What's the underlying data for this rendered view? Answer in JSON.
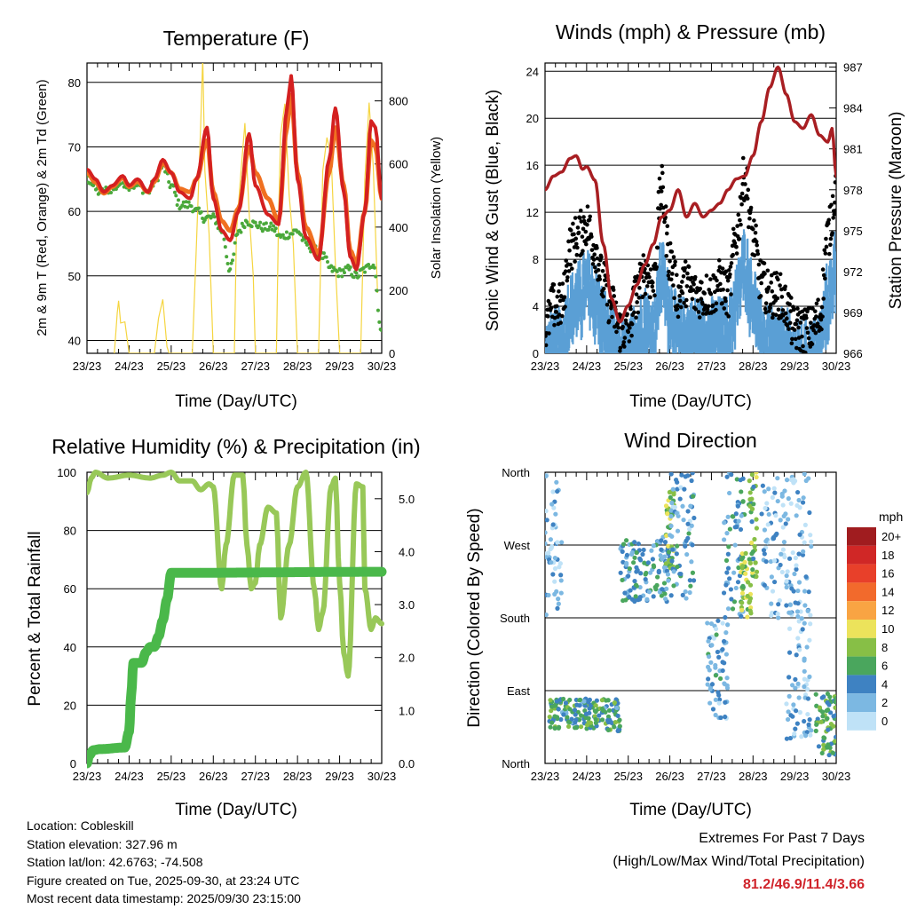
{
  "figure": {
    "location_line": "Location: Cobleskill",
    "elevation_line": "Station elevation: 327.96 m",
    "latlon_line": "Station lat/lon: 42.6763; -74.508",
    "created_line": "Figure created on Tue, 2025-09-30, at 23:24 UTC",
    "recent_line": "Most recent data timestamp: 2025/09/30 23:15:00",
    "extremes_title": "Extremes For Past 7 Days",
    "extremes_sub": "(High/Low/Max Wind/Total Precipitation)",
    "extremes_values": "81.2/46.9/11.4/3.66",
    "extremes_color": "#d0242b"
  },
  "x_tick_labels": [
    "23/23",
    "24/23",
    "25/23",
    "26/23",
    "27/23",
    "28/23",
    "29/23",
    "30/23"
  ],
  "chart_data": [
    {
      "type": "line",
      "title": "Temperature (F)",
      "xlabel": "Time (Day/UTC)",
      "ylabel": "2m & 9m T (Red, Orange) & 2m Td (Green)",
      "y2label": "Solar Insolation (Yellow)",
      "xlim": [
        0,
        7
      ],
      "ylim": [
        38,
        83
      ],
      "y2lim": [
        0,
        920
      ],
      "yticks": [
        40,
        50,
        60,
        70,
        80
      ],
      "y2ticks": [
        0,
        200,
        400,
        600,
        800
      ],
      "series": [
        {
          "name": "2m T",
          "color": "#d42020",
          "axis": "left",
          "x": [
            0,
            0.2,
            0.4,
            0.6,
            0.85,
            1.0,
            1.2,
            1.45,
            1.6,
            1.8,
            2.0,
            2.2,
            2.45,
            2.6,
            2.85,
            3.0,
            3.2,
            3.4,
            3.6,
            3.85,
            4.0,
            4.3,
            4.55,
            4.75,
            4.85,
            5.0,
            5.2,
            5.5,
            5.75,
            5.9,
            6.1,
            6.25,
            6.4,
            6.6,
            6.75,
            6.85,
            7.0
          ],
          "y": [
            66.5,
            65,
            63,
            64,
            65.5,
            64,
            65,
            63,
            65,
            68,
            66,
            63,
            62,
            65,
            73,
            62,
            57,
            55.5,
            60,
            72,
            64,
            59.5,
            58,
            76,
            81,
            65,
            56,
            52.5,
            68,
            76,
            63,
            53,
            51,
            60,
            74,
            73,
            62
          ]
        },
        {
          "name": "9m T",
          "color": "#f07020",
          "axis": "left",
          "x": [
            0,
            0.2,
            0.4,
            0.6,
            0.85,
            1.0,
            1.2,
            1.45,
            1.6,
            1.8,
            2.0,
            2.2,
            2.45,
            2.6,
            2.85,
            3.0,
            3.2,
            3.4,
            3.6,
            3.85,
            4.0,
            4.3,
            4.55,
            4.75,
            4.85,
            5.0,
            5.2,
            5.5,
            5.75,
            5.9,
            6.1,
            6.25,
            6.4,
            6.6,
            6.75,
            6.85,
            7.0
          ],
          "y": [
            66,
            64.5,
            62.8,
            63.8,
            65.2,
            63.8,
            64.6,
            63,
            64.6,
            67.5,
            66,
            63.5,
            63,
            65,
            71,
            63,
            58.5,
            57,
            60.5,
            70,
            66,
            62,
            58.5,
            73,
            78,
            66,
            57.5,
            53.5,
            66,
            73,
            64,
            54,
            52,
            60,
            71,
            70,
            62
          ]
        },
        {
          "name": "2m Td",
          "color": "#4aa83a",
          "axis": "left",
          "x": [
            0,
            0.3,
            0.6,
            0.85,
            1.0,
            1.2,
            1.45,
            1.6,
            1.8,
            2.0,
            2.2,
            2.45,
            2.6,
            2.8,
            3.0,
            3.2,
            3.4,
            3.6,
            3.8,
            4.0,
            4.2,
            4.4,
            4.6,
            4.8,
            5.0,
            5.2,
            5.4,
            5.6,
            5.8,
            6.0,
            6.2,
            6.4,
            6.6,
            6.8,
            7.0
          ],
          "y": [
            65,
            63,
            63.5,
            64.5,
            64,
            64,
            63,
            64.5,
            67,
            64,
            61,
            61,
            60,
            59,
            59,
            57,
            51,
            57,
            58.5,
            58,
            57.5,
            57.5,
            56,
            56.5,
            57,
            55,
            54,
            53,
            51,
            50.5,
            51,
            50,
            51,
            52,
            41
          ]
        },
        {
          "name": "Solar Insolation",
          "color": "#f5d540",
          "axis": "right",
          "x": [
            0.65,
            0.72,
            0.75,
            0.8,
            0.9,
            1.0,
            1.6,
            1.7,
            1.8,
            1.9,
            1.95,
            2.5,
            2.6,
            2.7,
            2.75,
            2.8,
            2.9,
            3.0,
            3.5,
            3.55,
            3.65,
            3.75,
            3.85,
            3.95,
            4.0,
            4.5,
            4.55,
            4.6,
            4.7,
            4.8,
            4.9,
            5.0,
            5.5,
            5.6,
            5.7,
            5.8,
            5.9,
            6.0,
            6.5,
            6.6,
            6.7,
            6.8,
            6.9
          ],
          "y": [
            0,
            110,
            190,
            80,
            40,
            0,
            0,
            90,
            150,
            60,
            0,
            0,
            300,
            700,
            900,
            550,
            400,
            0,
            0,
            350,
            600,
            720,
            480,
            280,
            0,
            0,
            400,
            650,
            750,
            550,
            350,
            0,
            0,
            550,
            700,
            650,
            300,
            0,
            0,
            500,
            750,
            600,
            200
          ]
        }
      ]
    },
    {
      "type": "scatter",
      "title": "Winds (mph) & Pressure (mb)",
      "xlabel": "Time (Day/UTC)",
      "ylabel": "Sonic Wind & Gust (Blue, Black)",
      "y2label": "Station Pressure (Maroon)",
      "xlim": [
        0,
        7
      ],
      "ylim": [
        0,
        24.7
      ],
      "y2lim": [
        966,
        987.3
      ],
      "yticks": [
        0,
        4,
        8,
        12,
        16,
        20,
        24
      ],
      "y2ticks": [
        966,
        969,
        972,
        975,
        978,
        981,
        984,
        987
      ],
      "series": [
        {
          "name": "Sonic Wind",
          "color": "#5a9fd5",
          "x": [
            0,
            0.2,
            0.4,
            0.6,
            0.8,
            1.0,
            1.2,
            1.4,
            1.6,
            1.8,
            2.0,
            2.2,
            2.4,
            2.6,
            2.8,
            3.0,
            3.2,
            3.4,
            3.6,
            3.8,
            4.0,
            4.2,
            4.4,
            4.6,
            4.8,
            5.0,
            5.2,
            5.4,
            5.6,
            5.8,
            6.0,
            6.2,
            6.4,
            6.6,
            6.8,
            7.0
          ],
          "y": [
            1,
            2,
            2,
            5,
            6,
            7,
            6,
            4,
            2,
            1,
            1,
            3,
            4,
            3,
            8,
            5,
            3,
            3,
            3,
            3,
            3,
            3,
            3,
            6,
            9,
            6,
            3,
            2,
            2,
            2,
            1,
            1,
            1,
            2,
            6,
            9
          ]
        },
        {
          "name": "Gust",
          "color": "#000000",
          "x": [
            0,
            0.2,
            0.4,
            0.6,
            0.8,
            1.0,
            1.2,
            1.4,
            1.6,
            1.8,
            2.0,
            2.2,
            2.4,
            2.6,
            2.8,
            3.0,
            3.2,
            3.4,
            3.6,
            3.8,
            4.0,
            4.2,
            4.4,
            4.6,
            4.8,
            5.0,
            5.2,
            5.4,
            5.6,
            5.8,
            6.0,
            6.2,
            6.4,
            6.6,
            6.8,
            7.0
          ],
          "y": [
            2,
            4,
            4,
            9,
            10,
            11,
            9,
            6,
            4,
            2,
            2,
            5,
            7,
            6,
            14,
            8,
            5,
            6,
            5,
            5,
            5,
            6,
            5,
            10,
            15,
            10,
            6,
            5,
            5,
            4,
            2,
            2,
            2,
            3,
            10,
            14
          ]
        },
        {
          "name": "Station Pressure",
          "color": "#a81e22",
          "axis": "right",
          "x": [
            0,
            0.2,
            0.4,
            0.6,
            0.75,
            0.9,
            1.0,
            1.2,
            1.4,
            1.6,
            1.8,
            2.0,
            2.2,
            2.4,
            2.6,
            2.8,
            3.0,
            3.2,
            3.4,
            3.6,
            3.8,
            4.0,
            4.2,
            4.4,
            4.6,
            4.8,
            5.0,
            5.2,
            5.4,
            5.6,
            5.8,
            6.0,
            6.2,
            6.4,
            6.6,
            6.8,
            6.9,
            7.0
          ],
          "y": [
            978,
            979,
            979.3,
            980.3,
            980.5,
            979.5,
            979.7,
            978.7,
            974,
            970,
            968.3,
            969.5,
            971,
            972.5,
            974,
            976,
            976.5,
            978,
            976,
            977,
            976,
            976.5,
            977,
            978,
            978.8,
            979,
            980.5,
            983,
            985.5,
            987,
            985,
            983,
            982.5,
            983.5,
            982,
            981.5,
            982.5,
            979
          ]
        }
      ]
    },
    {
      "type": "line",
      "title": "Relative Humidity (%) & Precipitation (in)",
      "xlabel": "Time (Day/UTC)",
      "ylabel": "Percent & Total Rainfall",
      "xlim": [
        0,
        7
      ],
      "ylim": [
        0,
        100
      ],
      "y2lim": [
        0,
        5.5
      ],
      "yticks": [
        0,
        20,
        40,
        60,
        80,
        100
      ],
      "y2ticks": [
        0.0,
        1.0,
        2.0,
        3.0,
        4.0,
        5.0
      ],
      "y2ticklabels": [
        "0.0",
        "1.0",
        "2.0",
        "3.0",
        "4.0",
        "5.0"
      ],
      "series": [
        {
          "name": "Relative Humidity",
          "color": "#98c858",
          "x": [
            0,
            0.1,
            0.2,
            0.5,
            1.0,
            1.5,
            1.8,
            2.0,
            2.2,
            2.5,
            2.7,
            2.9,
            3.0,
            3.2,
            3.3,
            3.5,
            3.7,
            3.8,
            3.9,
            4.0,
            4.1,
            4.3,
            4.5,
            4.6,
            4.8,
            5.0,
            5.2,
            5.4,
            5.5,
            5.6,
            5.8,
            5.9,
            6.0,
            6.1,
            6.2,
            6.4,
            6.55,
            6.6,
            6.75,
            6.85,
            7.0
          ],
          "y": [
            93,
            98,
            100,
            98,
            99,
            98,
            99,
            100,
            97,
            97,
            94,
            96,
            95,
            60,
            75,
            99,
            99,
            75,
            60,
            62,
            75,
            88,
            86,
            50,
            75,
            95,
            100,
            60,
            46,
            52,
            95,
            98,
            62,
            38,
            30,
            96,
            95,
            60,
            46,
            50,
            48
          ]
        },
        {
          "name": "Total Precipitation",
          "color": "#4ab84a",
          "axis": "right",
          "x": [
            0,
            0.05,
            0.15,
            0.3,
            0.9,
            1.0,
            1.05,
            1.1,
            1.3,
            1.4,
            1.5,
            1.6,
            1.7,
            1.8,
            1.9,
            2.0,
            7.0
          ],
          "y": [
            0,
            0.15,
            0.25,
            0.27,
            0.3,
            0.6,
            1.3,
            1.9,
            1.9,
            2.1,
            2.2,
            2.2,
            2.4,
            2.7,
            3.1,
            3.6,
            3.62
          ]
        }
      ]
    },
    {
      "type": "scatter",
      "title": "Wind Direction",
      "xlabel": "Time (Day/UTC)",
      "ylabel": "Direction (Colored By Speed)",
      "xlim": [
        0,
        7
      ],
      "ylim": [
        0,
        360
      ],
      "yticklabels": [
        "North",
        "East",
        "South",
        "West",
        "North"
      ],
      "legend": {
        "title": "mph",
        "labels": [
          "20+",
          "18",
          "16",
          "14",
          "12",
          "10",
          "8",
          "6",
          "4",
          "2",
          "0"
        ],
        "colors": [
          "#a01c1f",
          "#d02726",
          "#e8402a",
          "#f26a2c",
          "#f9a443",
          "#ece35b",
          "#87bf46",
          "#4aa65d",
          "#3e82c2",
          "#7cb8e2",
          "#bfe2f7"
        ]
      },
      "clusters": [
        {
          "x": [
            0.1,
            1.8
          ],
          "dir": [
            40,
            80
          ],
          "speed": 5
        },
        {
          "x": [
            0.0,
            0.4
          ],
          "dir": [
            180,
            360
          ],
          "speed": 2
        },
        {
          "x": [
            1.8,
            3.0
          ],
          "dir": [
            200,
            280
          ],
          "speed": 4
        },
        {
          "x": [
            2.9,
            3.1
          ],
          "dir": [
            230,
            340
          ],
          "speed": 8
        },
        {
          "x": [
            3.0,
            3.6
          ],
          "dir": [
            200,
            360
          ],
          "speed": 3
        },
        {
          "x": [
            3.9,
            4.4
          ],
          "dir": [
            50,
            180
          ],
          "speed": 3
        },
        {
          "x": [
            4.3,
            4.8
          ],
          "dir": [
            180,
            360
          ],
          "speed": 4
        },
        {
          "x": [
            4.7,
            4.95
          ],
          "dir": [
            180,
            260
          ],
          "speed": 9
        },
        {
          "x": [
            4.9,
            5.1
          ],
          "dir": [
            230,
            360
          ],
          "speed": 7
        },
        {
          "x": [
            5.2,
            6.4
          ],
          "dir": [
            180,
            360
          ],
          "speed": 2
        },
        {
          "x": [
            5.8,
            6.4
          ],
          "dir": [
            30,
            200
          ],
          "speed": 2
        },
        {
          "x": [
            6.5,
            7.0
          ],
          "dir": [
            10,
            90
          ],
          "speed": 6
        }
      ]
    }
  ]
}
